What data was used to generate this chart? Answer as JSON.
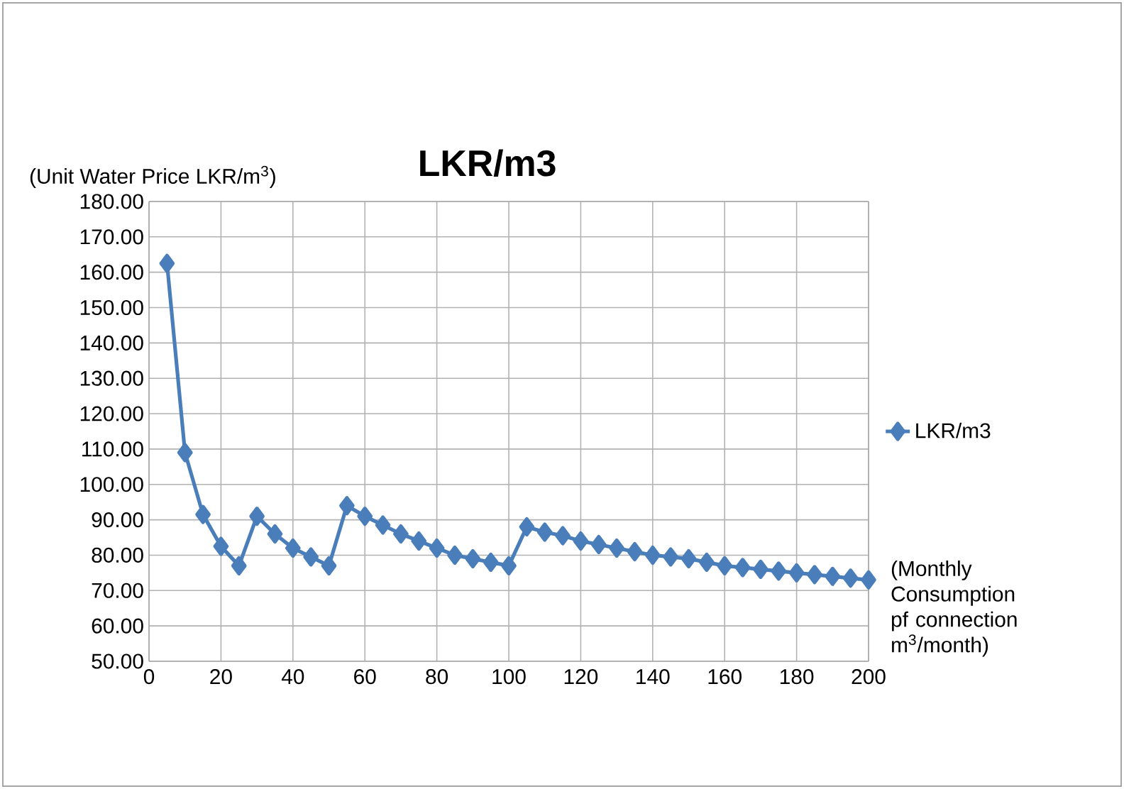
{
  "chart_data": {
    "type": "line",
    "title": "LKR/m3",
    "ylabel": "(Unit Water Price LKR/m$^{3}$)",
    "xlabel": "(Monthly Consumption pf connection m$^{3}$/month)",
    "x": [
      5,
      10,
      15,
      20,
      25,
      30,
      35,
      40,
      45,
      50,
      55,
      60,
      65,
      70,
      75,
      80,
      85,
      90,
      95,
      100,
      105,
      110,
      115,
      120,
      125,
      130,
      135,
      140,
      145,
      150,
      155,
      160,
      165,
      170,
      175,
      180,
      185,
      190,
      195,
      200
    ],
    "series": [
      {
        "name": "LKR/m3",
        "color": "#4a7ebb",
        "values": [
          162.5,
          109,
          91.5,
          82.5,
          77,
          91,
          86,
          82,
          79.5,
          77,
          94,
          91,
          88.5,
          86,
          84,
          82,
          80,
          79,
          78,
          77,
          88,
          86.5,
          85.5,
          84,
          83,
          82,
          81,
          80,
          79.5,
          79,
          78,
          77,
          76.5,
          76,
          75.5,
          75,
          74.5,
          74,
          73.5,
          73
        ]
      }
    ],
    "xlim": [
      0,
      200
    ],
    "ylim": [
      50,
      180
    ],
    "xticks": [
      0,
      20,
      40,
      60,
      80,
      100,
      120,
      140,
      160,
      180,
      200
    ],
    "yticks": [
      {
        "value": 50,
        "label": "50.00"
      },
      {
        "value": 60,
        "label": "60.00"
      },
      {
        "value": 70,
        "label": "70.00"
      },
      {
        "value": 80,
        "label": "80.00"
      },
      {
        "value": 90,
        "label": "90.00"
      },
      {
        "value": 100,
        "label": "100.00"
      },
      {
        "value": 110,
        "label": "110.00"
      },
      {
        "value": 120,
        "label": "120.00"
      },
      {
        "value": 130,
        "label": "130.00"
      },
      {
        "value": 140,
        "label": "140.00"
      },
      {
        "value": 150,
        "label": "150.00"
      },
      {
        "value": 160,
        "label": "160.00"
      },
      {
        "value": 170,
        "label": "170.00"
      },
      {
        "value": 180,
        "label": "180.00"
      }
    ],
    "grid": true,
    "legend": "right",
    "marker": "diamond"
  }
}
